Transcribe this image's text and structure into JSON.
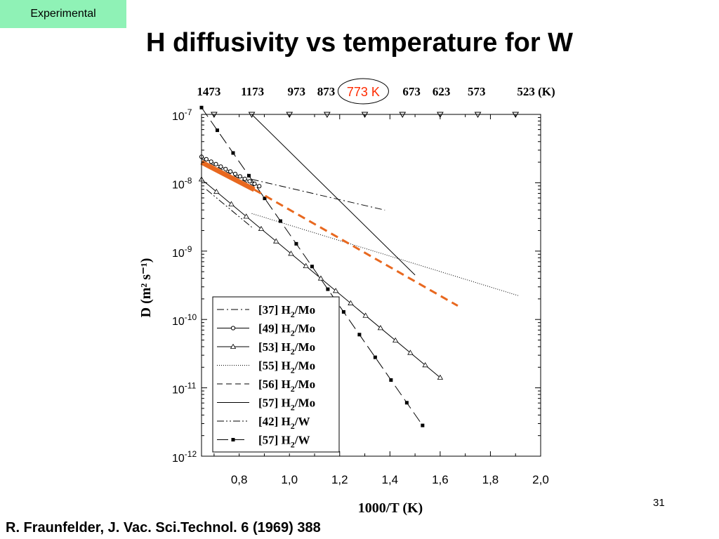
{
  "badge": {
    "label": "Experimental"
  },
  "slide": {
    "title": "H diffusivity vs temperature for W",
    "number": "31"
  },
  "citation": "R. Fraunfelder, J. Vac. Sci.Technol. 6 (1969) 388",
  "chart_data": {
    "type": "line",
    "title": "",
    "xlabel": "1000/T (K)",
    "ylabel": "D (m² s⁻¹)",
    "xlim": [
      0.65,
      2.0
    ],
    "ylim_log10": [
      -12,
      -7
    ],
    "y_scale": "log",
    "x_tick_labels": [
      "0,8",
      "1,0",
      "1,2",
      "1,4",
      "1,6",
      "1,8",
      "2,0"
    ],
    "x_tick_values": [
      0.8,
      1.0,
      1.2,
      1.4,
      1.6,
      1.8,
      2.0
    ],
    "y_tick_labels": [
      {
        "base": "10",
        "exp": "-7"
      },
      {
        "base": "10",
        "exp": "-8"
      },
      {
        "base": "10",
        "exp": "-9"
      },
      {
        "base": "10",
        "exp": "-10"
      },
      {
        "base": "10",
        "exp": "-11"
      },
      {
        "base": "10",
        "exp": "-12"
      }
    ],
    "y_tick_values": [
      -7,
      -8,
      -9,
      -10,
      -11,
      -12
    ],
    "top_axis_labels": [
      "1473",
      "1173",
      "973",
      "873",
      "673",
      "623",
      "573",
      "523 (K)"
    ],
    "top_axis_values": [
      0.679,
      0.853,
      1.028,
      1.146,
      1.486,
      1.605,
      1.745,
      1.912
    ],
    "highlight_label": "773 K",
    "highlight_x": 1.294,
    "highlight_color": "#e8681f",
    "legend_position": "lower-left-inside",
    "legend": [
      {
        "ref": "[37] H",
        "sub": "2",
        "rest": "/Mo"
      },
      {
        "ref": "[49] H",
        "sub": "2",
        "rest": "/Mo"
      },
      {
        "ref": "[53] H",
        "sub": "2",
        "rest": "/Mo"
      },
      {
        "ref": "[55] H",
        "sub": "2",
        "rest": "/Mo"
      },
      {
        "ref": "[56] H",
        "sub": "2",
        "rest": "/Mo"
      },
      {
        "ref": "[57] H",
        "sub": "2",
        "rest": "/Mo"
      },
      {
        "ref": "[42] H",
        "sub": "2",
        "rest": "/W"
      },
      {
        "ref": "[57] H",
        "sub": "2",
        "rest": "/W"
      }
    ],
    "series": [
      {
        "name": "[37] H2/Mo",
        "style": "dashdot",
        "marker": "none",
        "x": [
          0.85,
          1.38
        ],
        "y_log10": [
          -7.95,
          -8.4
        ]
      },
      {
        "name": "[49] H2/Mo",
        "style": "solid",
        "marker": "circle",
        "x": [
          0.65,
          0.88
        ],
        "y_log10": [
          -7.62,
          -8.05
        ]
      },
      {
        "name": "[53] H2/Mo",
        "style": "solid",
        "marker": "triangle",
        "x": [
          0.65,
          1.6
        ],
        "y_log10": [
          -7.95,
          -10.85
        ]
      },
      {
        "name": "[55] H2/Mo",
        "style": "dotted",
        "marker": "none",
        "x": [
          0.85,
          1.91
        ],
        "y_log10": [
          -8.45,
          -9.65
        ]
      },
      {
        "name": "[56] H2/Mo",
        "style": "dashed",
        "marker": "none",
        "x": [
          0.65,
          0.86
        ],
        "y_log10": [
          -7.65,
          -8.05
        ]
      },
      {
        "name": "[57] H2/Mo",
        "style": "solid",
        "marker": "none",
        "x": [
          0.85,
          1.5
        ],
        "y_log10": [
          -7.0,
          -9.35
        ]
      },
      {
        "name": "[42] H2/W",
        "style": "dashdotdot",
        "marker": "none",
        "x": [
          0.67,
          0.85
        ],
        "y_log10": [
          -8.1,
          -8.65
        ]
      },
      {
        "name": "[57] H2/W",
        "style": "longdash",
        "marker": "square",
        "x": [
          0.65,
          1.53
        ],
        "y_log10": [
          -6.9,
          -11.55
        ]
      },
      {
        "name": "",
        "style": "orange-thick-solid",
        "marker": "none",
        "x": [
          0.65,
          0.86
        ],
        "y_log10": [
          -7.7,
          -8.1
        ]
      },
      {
        "name": "",
        "style": "orange-dashed",
        "marker": "none",
        "x": [
          0.86,
          1.67
        ],
        "y_log10": [
          -8.1,
          -9.8
        ]
      }
    ],
    "top_markers": "triangle-down"
  }
}
